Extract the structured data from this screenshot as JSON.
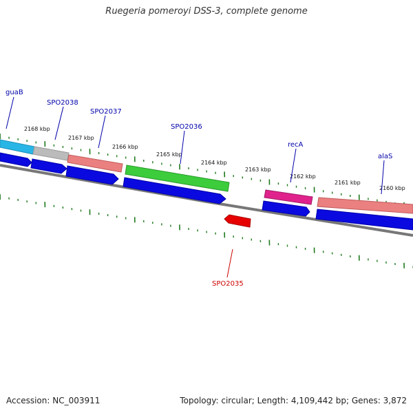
{
  "title": "Ruegeria pomeroyi DSS-3, complete genome",
  "footer": {
    "accession": "Accession: NC_003911",
    "summary": "Topology: circular; Length: 4,109,442 bp; Genes: 3,872"
  },
  "colors": {
    "backbone": "#777777",
    "tick": "#1e7a1e",
    "cds": "#0a0ae0",
    "gene_label": "#0000aa",
    "special_label": "#cc0000",
    "cyan": "#29b6e6",
    "gray": "#bbbbbb",
    "salmon": "#eb8080",
    "green": "#3ccc3c",
    "magenta": "#e0228c",
    "red": "#e60000"
  },
  "kbp_labels": [
    "2168 kbp",
    "2167 kbp",
    "2166 kbp",
    "2165 kbp",
    "2164 kbp",
    "2163 kbp",
    "2162 kbp",
    "2161 kbp",
    "2160 kbp"
  ],
  "gene_labels": [
    "guaB",
    "SPO2038",
    "SPO2037",
    "SPO2036",
    "recA",
    "alaS",
    "SPO2035"
  ]
}
